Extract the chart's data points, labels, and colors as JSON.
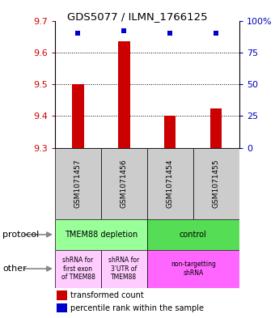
{
  "title": "GDS5077 / ILMN_1766125",
  "samples": [
    "GSM1071457",
    "GSM1071456",
    "GSM1071454",
    "GSM1071455"
  ],
  "bar_values": [
    9.5,
    9.635,
    9.4,
    9.425
  ],
  "bar_base": 9.3,
  "percentile_values": [
    90,
    92,
    90,
    90
  ],
  "ylim_left": [
    9.3,
    9.7
  ],
  "ylim_right": [
    0,
    100
  ],
  "yticks_left": [
    9.3,
    9.4,
    9.5,
    9.6,
    9.7
  ],
  "yticks_right": [
    0,
    25,
    50,
    75,
    100
  ],
  "ytick_right_labels": [
    "0",
    "25",
    "50",
    "75",
    "100%"
  ],
  "gridlines": [
    9.4,
    9.5,
    9.6
  ],
  "bar_color": "#cc0000",
  "dot_color": "#0000cc",
  "protocol_row": [
    {
      "label": "TMEM88 depletion",
      "color": "#99ff99",
      "span": [
        0,
        2
      ]
    },
    {
      "label": "control",
      "color": "#55dd55",
      "span": [
        2,
        4
      ]
    }
  ],
  "other_row": [
    {
      "label": "shRNA for\nfirst exon\nof TMEM88",
      "color": "#ffccff",
      "span": [
        0,
        1
      ]
    },
    {
      "label": "shRNA for\n3'UTR of\nTMEM88",
      "color": "#ffccff",
      "span": [
        1,
        2
      ]
    },
    {
      "label": "non-targetting\nshRNA",
      "color": "#ff66ff",
      "span": [
        2,
        4
      ]
    }
  ],
  "legend_items": [
    {
      "color": "#cc0000",
      "label": "transformed count"
    },
    {
      "color": "#0000cc",
      "label": "percentile rank within the sample"
    }
  ],
  "left_label_color": "#cc0000",
  "right_label_color": "#0000bb",
  "sample_box_color": "#cccccc",
  "row_label_protocol": "protocol",
  "row_label_other": "other",
  "bar_width": 0.25
}
